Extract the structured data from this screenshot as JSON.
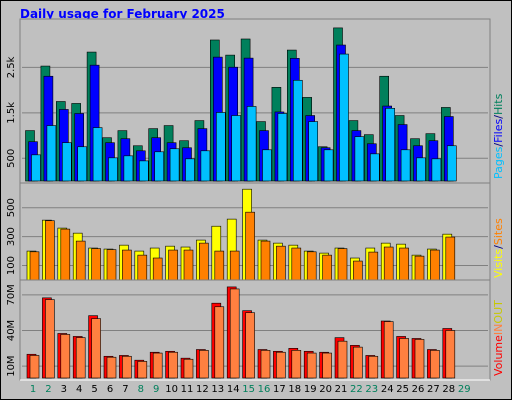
{
  "chart_data": [
    {
      "type": "bar",
      "title": "Daily usage for February 2025",
      "ylim": [
        0,
        3500
      ],
      "yticks": [
        {
          "value": 500,
          "label": "500"
        },
        {
          "value": 1500,
          "label": "1.5k"
        },
        {
          "value": 2500,
          "label": "2.5k"
        }
      ],
      "grid": true,
      "draw_order": "reverse",
      "legend_separator": "/",
      "series": [
        {
          "name": "Pages",
          "color": "#00c0ff",
          "values": [
            576,
            1220,
            843,
            754,
            1175,
            510,
            554,
            443,
            643,
            710,
            488,
            665,
            1508,
            1441,
            1641,
            687,
            1486,
            2217,
            1308,
            687,
            2794,
            976,
            598,
            1600,
            687,
            510,
            488,
            776,
            null
          ]
        },
        {
          "name": "Files",
          "color": "#0000ff",
          "values": [
            865,
            2306,
            1575,
            1486,
            2550,
            843,
            931,
            665,
            953,
            843,
            732,
            1153,
            2727,
            2505,
            2705,
            1109,
            1520,
            2700,
            1441,
            732,
            2993,
            1109,
            820,
            1650,
            1242,
            776,
            887,
            1419,
            null
          ]
        },
        {
          "name": "Hits",
          "color": "#00805c",
          "values": [
            1110,
            2530,
            1750,
            1707,
            2838,
            953,
            1109,
            776,
            1153,
            1220,
            887,
            1330,
            3104,
            2771,
            3126,
            1308,
            2062,
            2882,
            1840,
            754,
            3370,
            1330,
            1020,
            2306,
            1441,
            931,
            1042,
            1619,
            null
          ]
        }
      ]
    },
    {
      "type": "bar",
      "ylim": [
        0,
        650
      ],
      "yticks": [
        100,
        300,
        500
      ],
      "grid": true,
      "draw_order": "forward",
      "legend_separator": "/",
      "series": [
        {
          "name": "Visits",
          "color": "#ffff00",
          "values": [
            200,
            414,
            359,
            324,
            221,
            214,
            241,
            200,
            221,
            234,
            228,
            276,
            372,
            421,
            628,
            276,
            255,
            241,
            200,
            186,
            221,
            152,
            221,
            255,
            248,
            172,
            214,
            317,
            null
          ]
        },
        {
          "name": "Sites",
          "color": "#ff8000",
          "values": [
            195,
            410,
            352,
            269,
            217,
            210,
            207,
            172,
            152,
            207,
            207,
            255,
            200,
            200,
            469,
            269,
            234,
            221,
            195,
            172,
            217,
            131,
            193,
            228,
            221,
            165,
            207,
            297,
            null
          ]
        }
      ]
    },
    {
      "type": "bar",
      "ylim": [
        0,
        80
      ],
      "yticks": [
        {
          "value": 10,
          "label": "10M"
        },
        {
          "value": 40,
          "label": "40M"
        },
        {
          "value": 70,
          "label": "70M"
        }
      ],
      "grid": true,
      "draw_order": "forward",
      "legend_extra": [
        "OUT"
      ],
      "legend_extra_color": "#c8c800",
      "categories": [
        "1",
        "2",
        "3",
        "4",
        "5",
        "6",
        "7",
        "8",
        "9",
        "10",
        "11",
        "12",
        "13",
        "14",
        "15",
        "16",
        "17",
        "18",
        "19",
        "20",
        "21",
        "22",
        "23",
        "24",
        "25",
        "26",
        "27",
        "28",
        "29"
      ],
      "category_colors": [
        "#00805c",
        "#00805c",
        "#000000",
        "#000000",
        "#000000",
        "#000000",
        "#000000",
        "#00805c",
        "#00805c",
        "#000000",
        "#000000",
        "#000000",
        "#000000",
        "#000000",
        "#00805c",
        "#00805c",
        "#000000",
        "#000000",
        "#000000",
        "#000000",
        "#000000",
        "#00805c",
        "#00805c",
        "#000000",
        "#000000",
        "#000000",
        "#000000",
        "#000000",
        "#00805c"
      ],
      "series": [
        {
          "name": "Volume",
          "color": "#ff0000",
          "values": [
            20,
            67.5,
            37.5,
            35,
            52.5,
            18.3,
            19,
            15,
            21.7,
            22.5,
            16.7,
            24,
            63,
            76.7,
            56.7,
            24,
            22.5,
            25,
            22.5,
            21.7,
            34,
            27.5,
            19,
            48,
            35,
            33.3,
            24,
            41.7,
            null
          ]
        },
        {
          "name": "IN",
          "color": "#ff8040",
          "values": [
            19,
            66,
            36.7,
            34,
            50,
            17.5,
            18.3,
            14,
            21,
            21.7,
            15.8,
            23.3,
            60,
            75,
            55,
            23.3,
            21.7,
            23.3,
            21,
            21,
            31,
            26,
            18.3,
            47.5,
            33.3,
            32.5,
            23.3,
            40,
            null
          ]
        }
      ]
    }
  ]
}
